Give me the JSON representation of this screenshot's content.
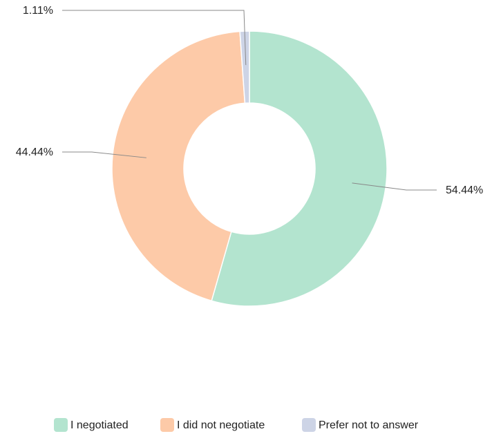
{
  "chart_data": {
    "type": "donut",
    "categories": [
      "I negotiated",
      "I did not negotiate",
      "Prefer not to answer"
    ],
    "values": [
      54.44,
      44.44,
      1.11
    ],
    "value_labels": [
      "54.44%",
      "44.44%",
      "1.11%"
    ],
    "colors": [
      "#b3e4cf",
      "#fdcaa8",
      "#cdd4e6"
    ]
  }
}
